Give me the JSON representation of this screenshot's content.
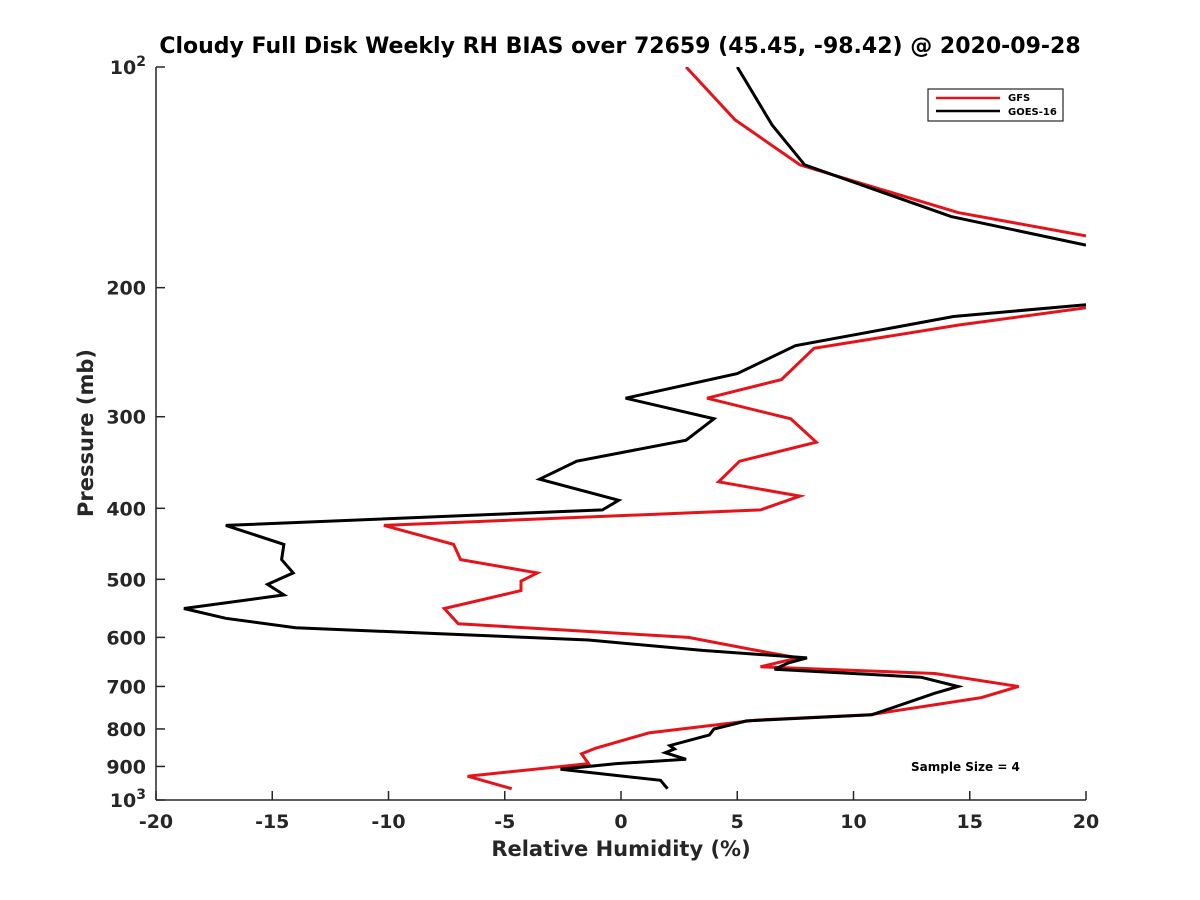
{
  "chart_data": {
    "type": "line",
    "title": "Cloudy Full Disk Weekly RH BIAS over 72659 (45.45, -98.42) @ 2020-09-28",
    "xlabel": "Relative Humidity (%)",
    "ylabel": "Pressure (mb)",
    "xlim": [
      -20,
      20
    ],
    "ylim": [
      100,
      1000
    ],
    "y_scale": "log",
    "y_reversed": true,
    "grid": false,
    "legend_position": "top-right",
    "xticks": [
      -20,
      -15,
      -10,
      -5,
      0,
      5,
      10,
      15,
      20
    ],
    "x_tick_labels": [
      "-20",
      "-15",
      "-10",
      "-5",
      "0",
      "5",
      "10",
      "15",
      "20"
    ],
    "yticks": [
      100,
      200,
      300,
      400,
      500,
      600,
      700,
      800,
      900,
      1000
    ],
    "y_tick_labels": [
      {
        "base": "10",
        "sup": "2"
      },
      {
        "base": "200",
        "sup": ""
      },
      {
        "base": "300",
        "sup": ""
      },
      {
        "base": "400",
        "sup": ""
      },
      {
        "base": "500",
        "sup": ""
      },
      {
        "base": "600",
        "sup": ""
      },
      {
        "base": "700",
        "sup": ""
      },
      {
        "base": "800",
        "sup": ""
      },
      {
        "base": "900",
        "sup": ""
      },
      {
        "base": "10",
        "sup": "3"
      }
    ],
    "annotation": "Sample Size = 4",
    "series": [
      {
        "name": "GFS",
        "color": "#e4141a",
        "segments": [
          [
            {
              "x": 2.8,
              "p": 100
            },
            {
              "x": 4.9,
              "p": 118
            },
            {
              "x": 7.7,
              "p": 136
            },
            {
              "x": 14.5,
              "p": 158
            },
            {
              "x": 20,
              "p": 170
            }
          ],
          [
            {
              "x": 20,
              "p": 213
            },
            {
              "x": 14.5,
              "p": 225
            },
            {
              "x": 8.3,
              "p": 242
            },
            {
              "x": 6.9,
              "p": 267
            },
            {
              "x": 3.7,
              "p": 283
            },
            {
              "x": 7.3,
              "p": 302
            },
            {
              "x": 8.4,
              "p": 325
            },
            {
              "x": 5.1,
              "p": 345
            },
            {
              "x": 4.2,
              "p": 368
            },
            {
              "x": 7.7,
              "p": 385
            },
            {
              "x": 6.0,
              "p": 402
            },
            {
              "x": -10.2,
              "p": 422
            },
            {
              "x": -7.2,
              "p": 448
            },
            {
              "x": -6.9,
              "p": 470
            },
            {
              "x": -3.6,
              "p": 490
            },
            {
              "x": -4.3,
              "p": 503
            },
            {
              "x": -4.3,
              "p": 518
            },
            {
              "x": -7.6,
              "p": 548
            },
            {
              "x": -7.0,
              "p": 575
            },
            {
              "x": 2.9,
              "p": 600
            },
            {
              "x": 5.6,
              "p": 623
            },
            {
              "x": 7.6,
              "p": 640
            },
            {
              "x": 6.0,
              "p": 658
            },
            {
              "x": 13.5,
              "p": 672
            },
            {
              "x": 17.1,
              "p": 700
            },
            {
              "x": 15.5,
              "p": 725
            },
            {
              "x": 10.7,
              "p": 765
            },
            {
              "x": 5.8,
              "p": 778
            },
            {
              "x": 1.2,
              "p": 810
            },
            {
              "x": -1.1,
              "p": 850
            },
            {
              "x": -1.7,
              "p": 865
            },
            {
              "x": -1.4,
              "p": 892
            },
            {
              "x": -3.3,
              "p": 905
            },
            {
              "x": -6.6,
              "p": 928
            },
            {
              "x": -4.7,
              "p": 965
            }
          ]
        ]
      },
      {
        "name": "GOES-16",
        "color": "#000000",
        "segments": [
          [
            {
              "x": 5.0,
              "p": 100
            },
            {
              "x": 6.5,
              "p": 120
            },
            {
              "x": 7.9,
              "p": 136
            },
            {
              "x": 14.2,
              "p": 160
            },
            {
              "x": 20,
              "p": 175
            }
          ],
          [
            {
              "x": 20,
              "p": 211
            },
            {
              "x": 14.3,
              "p": 219
            },
            {
              "x": 7.5,
              "p": 240
            },
            {
              "x": 5.0,
              "p": 262
            },
            {
              "x": 0.2,
              "p": 283
            },
            {
              "x": 4.0,
              "p": 302
            },
            {
              "x": 2.8,
              "p": 323
            },
            {
              "x": -1.9,
              "p": 345
            },
            {
              "x": -3.5,
              "p": 365
            },
            {
              "x": -0.1,
              "p": 390
            },
            {
              "x": -0.8,
              "p": 402
            },
            {
              "x": -17.0,
              "p": 422
            },
            {
              "x": -14.5,
              "p": 448
            },
            {
              "x": -14.6,
              "p": 470
            },
            {
              "x": -14.1,
              "p": 490
            },
            {
              "x": -15.2,
              "p": 508
            },
            {
              "x": -14.5,
              "p": 525
            },
            {
              "x": -18.8,
              "p": 548
            },
            {
              "x": -17.0,
              "p": 565
            },
            {
              "x": -14.0,
              "p": 582
            },
            {
              "x": -1.4,
              "p": 605
            },
            {
              "x": 3.5,
              "p": 625
            },
            {
              "x": 8.0,
              "p": 640
            },
            {
              "x": 7.2,
              "p": 650
            },
            {
              "x": 6.6,
              "p": 663
            },
            {
              "x": 12.9,
              "p": 680
            },
            {
              "x": 14.5,
              "p": 700
            },
            {
              "x": 13.5,
              "p": 715
            },
            {
              "x": 10.8,
              "p": 765
            },
            {
              "x": 5.4,
              "p": 780
            },
            {
              "x": 4.0,
              "p": 800
            },
            {
              "x": 3.8,
              "p": 815
            },
            {
              "x": 2.1,
              "p": 843
            },
            {
              "x": 2.3,
              "p": 852
            },
            {
              "x": 1.9,
              "p": 862
            },
            {
              "x": 2.8,
              "p": 880
            },
            {
              "x": -0.2,
              "p": 892
            },
            {
              "x": -2.6,
              "p": 908
            },
            {
              "x": 1.7,
              "p": 940
            },
            {
              "x": 2.0,
              "p": 965
            }
          ]
        ]
      }
    ]
  }
}
